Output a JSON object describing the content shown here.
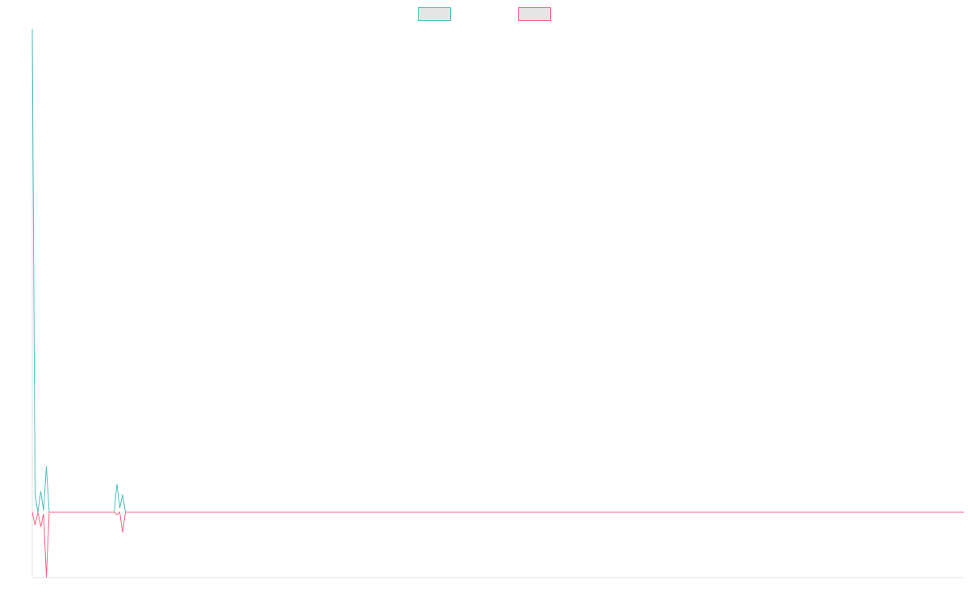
{
  "chart_data": {
    "type": "line",
    "x": [
      0,
      1,
      2,
      3,
      4,
      5,
      6,
      29,
      30,
      31,
      32,
      33,
      330
    ],
    "xlim": [
      0,
      330
    ],
    "ylim": [
      -81,
      599
    ],
    "series": [
      {
        "color": "#4bc0c0",
        "values": [
          599,
          20,
          0,
          26,
          2,
          57,
          0,
          0,
          35,
          5,
          22,
          0,
          0
        ]
      },
      {
        "color": "#ff6384",
        "values": [
          0,
          -16,
          0,
          -18,
          -2,
          -81,
          0,
          0,
          -3,
          0,
          -25,
          0,
          0
        ]
      }
    ],
    "legend": "top"
  }
}
